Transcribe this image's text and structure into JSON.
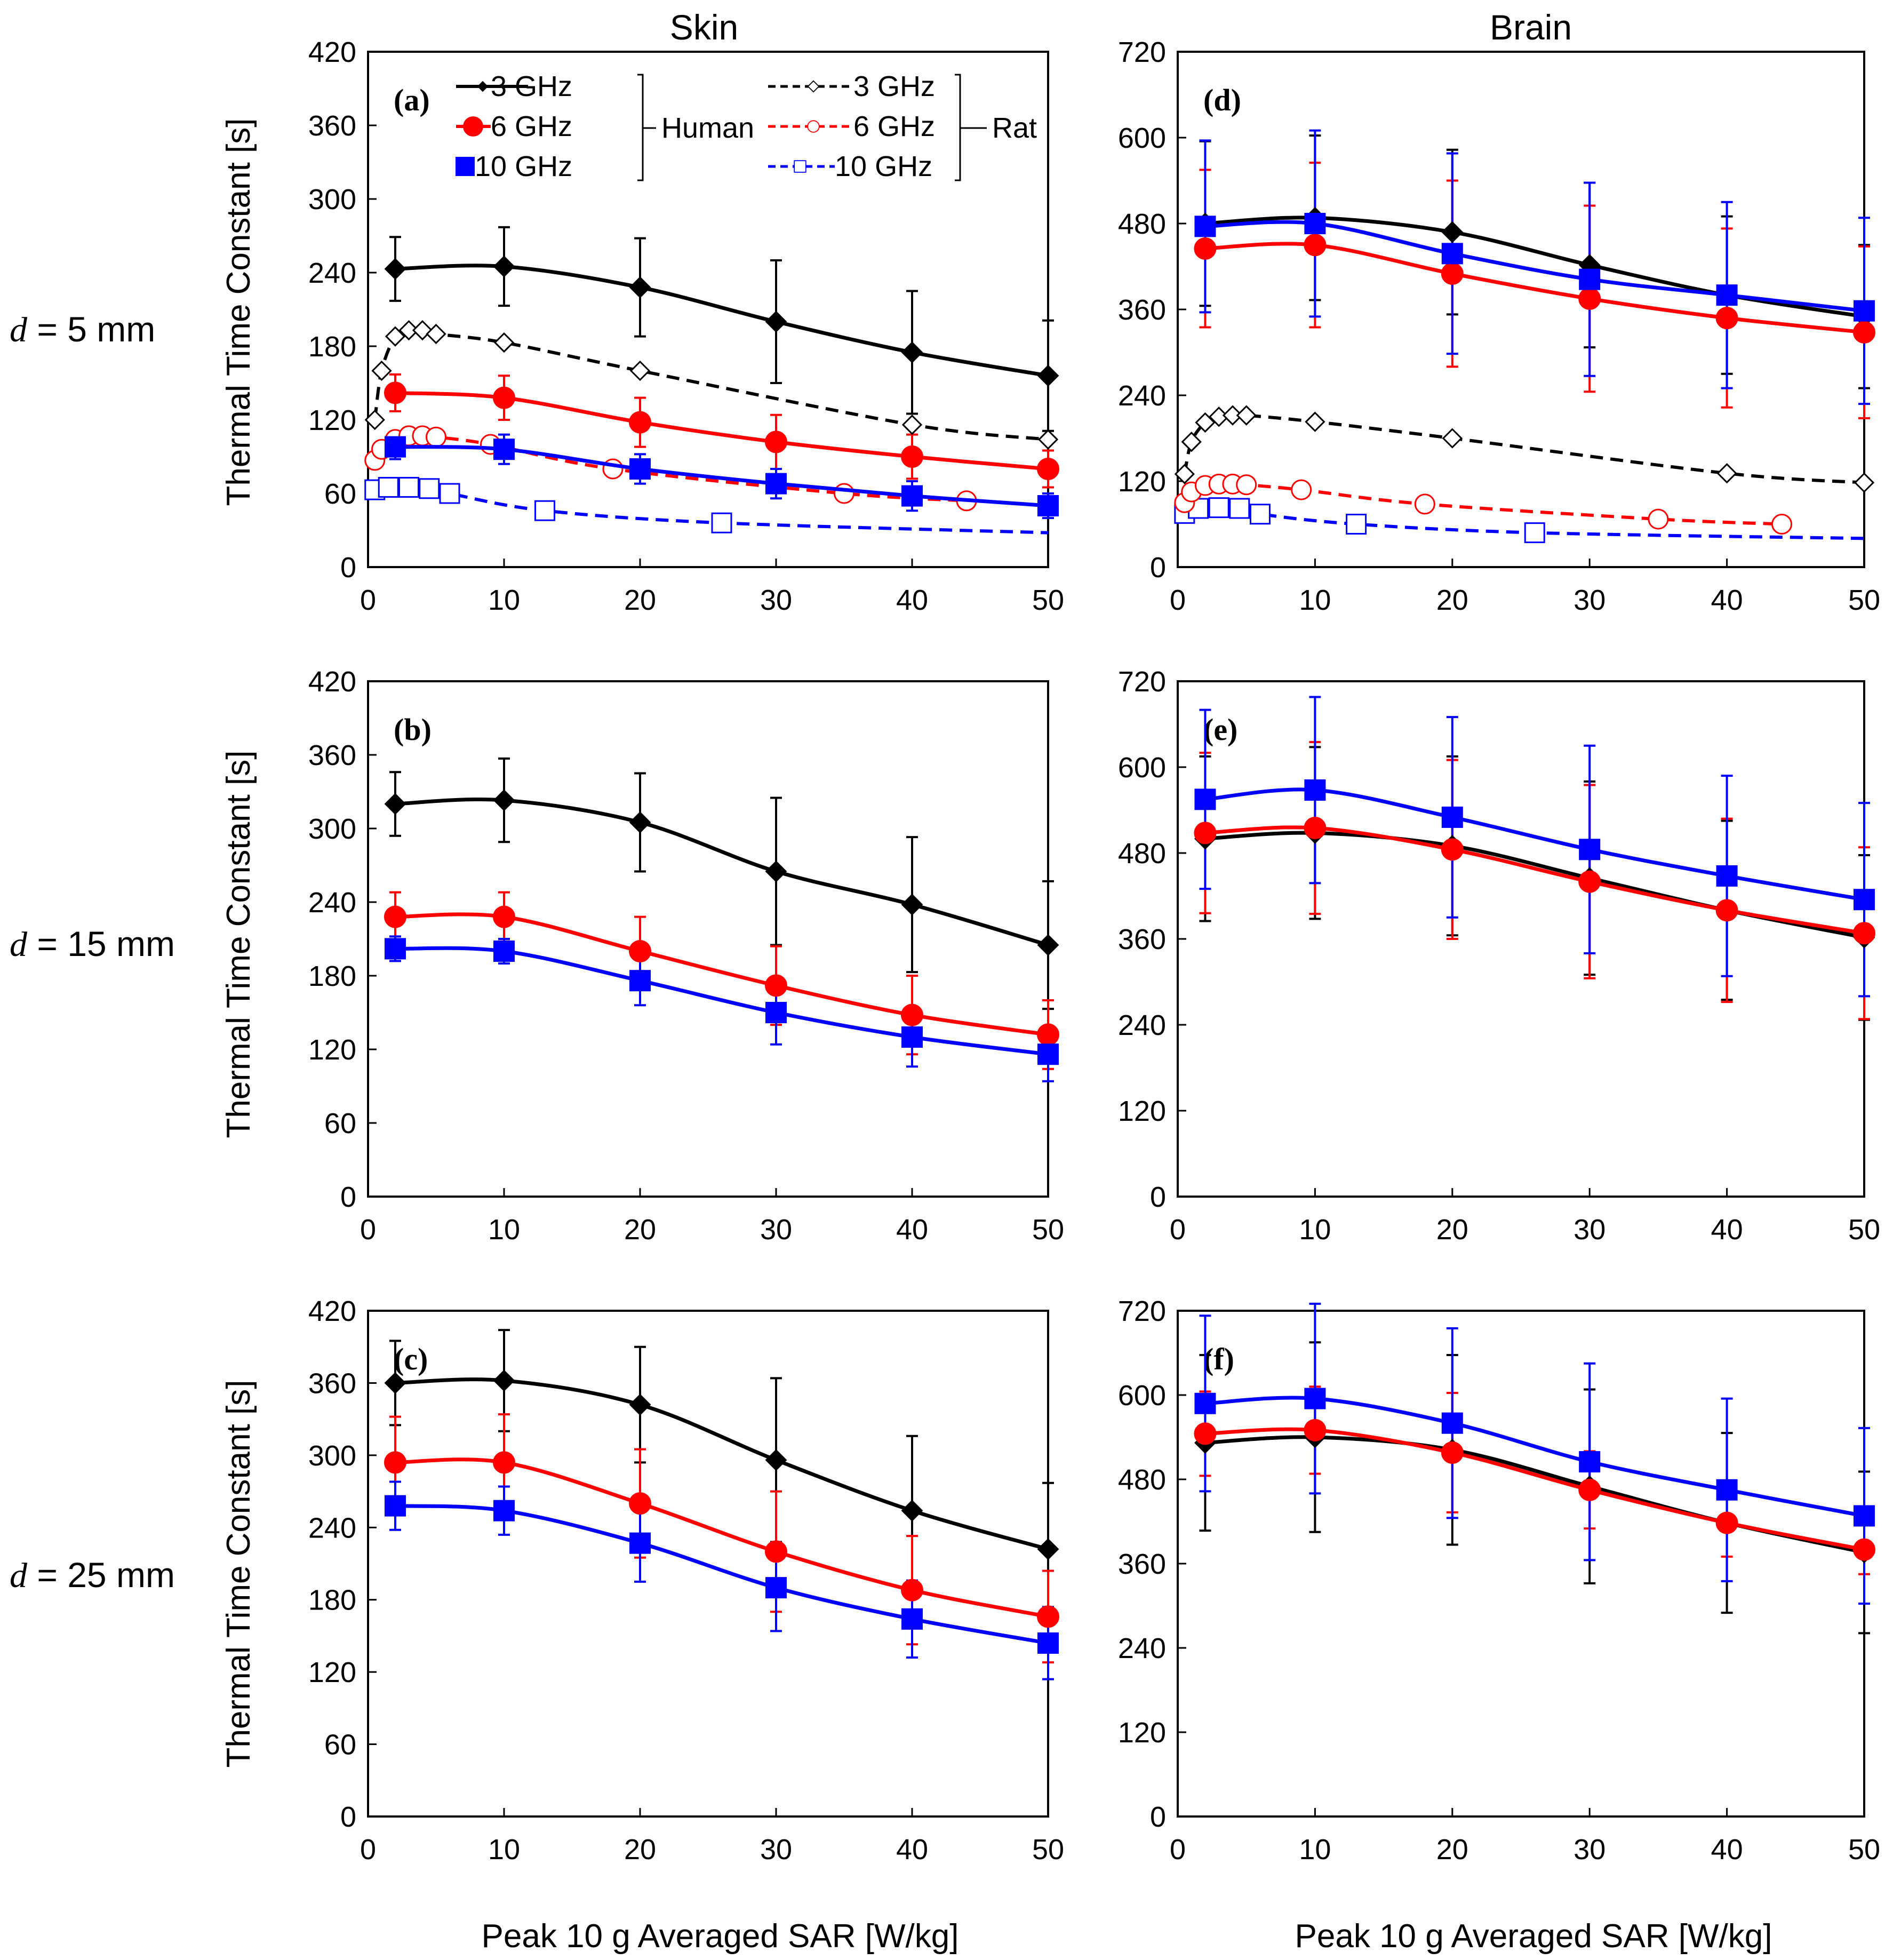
{
  "figure": {
    "column_titles": [
      "Skin",
      "Brain"
    ],
    "row_labels": [
      {
        "var": "d",
        "text": " = 5 mm"
      },
      {
        "var": "d",
        "text": " = 15 mm"
      },
      {
        "var": "d",
        "text": " = 25 mm"
      }
    ],
    "ylabel": "Thermal Time Constant [s]",
    "xlabel": "Peak 10 g Averaged SAR [W/kg]",
    "colors": {
      "3 GHz": "#000000",
      "6 GHz": "#ff0000",
      "10 GHz": "#0000ff"
    }
  },
  "legend": {
    "human_label": "Human",
    "rat_label": "Rat",
    "human": [
      "3 GHz",
      "6 GHz",
      "10 GHz"
    ],
    "rat": [
      "3 GHz",
      "6 GHz",
      "10 GHz"
    ]
  },
  "chart_data": [
    {
      "panel": "(a)",
      "type": "line",
      "column": "Skin",
      "row": "d = 5 mm",
      "xlim": [
        0,
        50
      ],
      "xticks": [
        0,
        10,
        20,
        30,
        40,
        50
      ],
      "ylim": [
        0,
        420
      ],
      "yticks": [
        0,
        60,
        120,
        180,
        240,
        300,
        360,
        420
      ],
      "series": [
        {
          "name": "Human 3 GHz",
          "species": "Human",
          "freq": "3 GHz",
          "marker": "diamond",
          "dash": false,
          "x": [
            2,
            10,
            20,
            30,
            40,
            50
          ],
          "y": [
            243,
            245,
            228,
            200,
            175,
            156
          ],
          "err": [
            26,
            32,
            40,
            50,
            50,
            45
          ]
        },
        {
          "name": "Human 6 GHz",
          "species": "Human",
          "freq": "6 GHz",
          "marker": "circle",
          "dash": false,
          "x": [
            2,
            10,
            20,
            30,
            40,
            50
          ],
          "y": [
            142,
            138,
            118,
            102,
            90,
            80
          ],
          "err": [
            15,
            18,
            20,
            22,
            18,
            15
          ]
        },
        {
          "name": "Human 10 GHz",
          "species": "Human",
          "freq": "10 GHz",
          "marker": "square",
          "dash": false,
          "x": [
            2,
            10,
            20,
            30,
            40,
            50
          ],
          "y": [
            98,
            96,
            80,
            68,
            58,
            50
          ],
          "err": [
            10,
            12,
            12,
            12,
            12,
            10
          ]
        },
        {
          "name": "Rat 3 GHz",
          "species": "Rat",
          "freq": "3 GHz",
          "marker": "diamond-open",
          "dash": true,
          "x": [
            0.5,
            1,
            2,
            3,
            4,
            5,
            10,
            20,
            40,
            50
          ],
          "y": [
            120,
            160,
            188,
            193,
            193,
            190,
            183,
            160,
            116,
            104
          ]
        },
        {
          "name": "Rat 6 GHz",
          "species": "Rat",
          "freq": "6 GHz",
          "marker": "circle-open",
          "dash": true,
          "x": [
            0.5,
            1,
            2,
            3,
            4,
            5,
            9,
            18,
            35,
            44
          ],
          "y": [
            87,
            96,
            104,
            107,
            107,
            106,
            100,
            80,
            60,
            54
          ]
        },
        {
          "name": "Rat 10 GHz",
          "species": "Rat",
          "freq": "10 GHz",
          "marker": "square-open",
          "dash": true,
          "x": [
            0.5,
            1.5,
            3,
            4.5,
            6,
            13,
            26,
            50
          ],
          "y": [
            63,
            65,
            65,
            64,
            60,
            46,
            36,
            28
          ],
          "markers_upto": 7
        }
      ]
    },
    {
      "panel": "(b)",
      "type": "line",
      "column": "Skin",
      "row": "d = 15 mm",
      "xlim": [
        0,
        50
      ],
      "xticks": [
        0,
        10,
        20,
        30,
        40,
        50
      ],
      "ylim": [
        0,
        420
      ],
      "yticks": [
        0,
        60,
        120,
        180,
        240,
        300,
        360,
        420
      ],
      "series": [
        {
          "name": "Human 3 GHz",
          "species": "Human",
          "freq": "3 GHz",
          "marker": "diamond",
          "dash": false,
          "x": [
            2,
            10,
            20,
            30,
            40,
            50
          ],
          "y": [
            320,
            323,
            305,
            265,
            238,
            205
          ],
          "err": [
            26,
            34,
            40,
            60,
            55,
            52
          ]
        },
        {
          "name": "Human 6 GHz",
          "species": "Human",
          "freq": "6 GHz",
          "marker": "circle",
          "dash": false,
          "x": [
            2,
            10,
            20,
            30,
            40,
            50
          ],
          "y": [
            228,
            228,
            200,
            172,
            148,
            132
          ],
          "err": [
            20,
            20,
            28,
            32,
            32,
            28
          ]
        },
        {
          "name": "Human 10 GHz",
          "species": "Human",
          "freq": "10 GHz",
          "marker": "square",
          "dash": false,
          "x": [
            2,
            10,
            20,
            30,
            40,
            50
          ],
          "y": [
            202,
            200,
            176,
            150,
            130,
            116
          ],
          "err": [
            10,
            10,
            20,
            26,
            24,
            22
          ]
        }
      ]
    },
    {
      "panel": "(c)",
      "type": "line",
      "column": "Skin",
      "row": "d = 25 mm",
      "xlim": [
        0,
        50
      ],
      "xticks": [
        0,
        10,
        20,
        30,
        40,
        50
      ],
      "ylim": [
        0,
        420
      ],
      "yticks": [
        0,
        60,
        120,
        180,
        240,
        300,
        360,
        420
      ],
      "series": [
        {
          "name": "Human 3 GHz",
          "species": "Human",
          "freq": "3 GHz",
          "marker": "diamond",
          "dash": false,
          "x": [
            2,
            10,
            20,
            30,
            40,
            50
          ],
          "y": [
            360,
            362,
            342,
            296,
            254,
            222
          ],
          "err": [
            35,
            42,
            48,
            68,
            62,
            55
          ]
        },
        {
          "name": "Human 6 GHz",
          "species": "Human",
          "freq": "6 GHz",
          "marker": "circle",
          "dash": false,
          "x": [
            2,
            10,
            20,
            30,
            40,
            50
          ],
          "y": [
            294,
            294,
            260,
            220,
            188,
            166
          ],
          "err": [
            38,
            40,
            45,
            50,
            45,
            38
          ]
        },
        {
          "name": "Human 10 GHz",
          "species": "Human",
          "freq": "10 GHz",
          "marker": "square",
          "dash": false,
          "x": [
            2,
            10,
            20,
            30,
            40,
            50
          ],
          "y": [
            258,
            254,
            227,
            190,
            164,
            144
          ],
          "err": [
            20,
            20,
            32,
            36,
            32,
            30
          ]
        }
      ]
    },
    {
      "panel": "(d)",
      "type": "line",
      "column": "Brain",
      "row": "d = 5 mm",
      "xlim": [
        0,
        50
      ],
      "xticks": [
        0,
        10,
        20,
        30,
        40,
        50
      ],
      "ylim": [
        0,
        720
      ],
      "yticks": [
        0,
        120,
        240,
        360,
        480,
        600,
        720
      ],
      "series": [
        {
          "name": "Human 3 GHz",
          "species": "Human",
          "freq": "3 GHz",
          "marker": "diamond",
          "dash": false,
          "x": [
            2,
            10,
            20,
            30,
            40,
            50
          ],
          "y": [
            480,
            488,
            468,
            422,
            380,
            350
          ],
          "err": [
            115,
            115,
            115,
            115,
            110,
            100
          ]
        },
        {
          "name": "Human 6 GHz",
          "species": "Human",
          "freq": "6 GHz",
          "marker": "circle",
          "dash": false,
          "x": [
            2,
            10,
            20,
            30,
            40,
            50
          ],
          "y": [
            445,
            450,
            410,
            375,
            348,
            328
          ],
          "err": [
            110,
            115,
            130,
            130,
            125,
            120
          ]
        },
        {
          "name": "Human 10 GHz",
          "species": "Human",
          "freq": "10 GHz",
          "marker": "square",
          "dash": false,
          "x": [
            2,
            10,
            20,
            30,
            40,
            50
          ],
          "y": [
            476,
            480,
            438,
            402,
            380,
            358
          ],
          "err": [
            120,
            130,
            140,
            135,
            130,
            130
          ]
        },
        {
          "name": "Rat 3 GHz",
          "species": "Rat",
          "freq": "3 GHz",
          "marker": "diamond-open",
          "dash": true,
          "x": [
            0.5,
            1,
            2,
            3,
            4,
            5,
            10,
            20,
            40,
            50
          ],
          "y": [
            130,
            175,
            202,
            210,
            212,
            212,
            203,
            180,
            131,
            118
          ]
        },
        {
          "name": "Rat 6 GHz",
          "species": "Rat",
          "freq": "6 GHz",
          "marker": "circle-open",
          "dash": true,
          "x": [
            0.5,
            1,
            2,
            3,
            4,
            5,
            9,
            18,
            35,
            44
          ],
          "y": [
            90,
            105,
            114,
            116,
            116,
            115,
            108,
            88,
            67,
            60
          ]
        },
        {
          "name": "Rat 10 GHz",
          "species": "Rat",
          "freq": "10 GHz",
          "marker": "square-open",
          "dash": true,
          "x": [
            0.5,
            1.5,
            3,
            4.5,
            6,
            13,
            26,
            50
          ],
          "y": [
            75,
            82,
            83,
            82,
            74,
            60,
            48,
            40
          ],
          "markers_upto": 7
        }
      ]
    },
    {
      "panel": "(e)",
      "type": "line",
      "column": "Brain",
      "row": "d = 15 mm",
      "xlim": [
        0,
        50
      ],
      "xticks": [
        0,
        10,
        20,
        30,
        40,
        50
      ],
      "ylim": [
        0,
        720
      ],
      "yticks": [
        0,
        120,
        240,
        360,
        480,
        600,
        720
      ],
      "series": [
        {
          "name": "Human 3 GHz",
          "species": "Human",
          "freq": "3 GHz",
          "marker": "diamond",
          "dash": false,
          "x": [
            2,
            10,
            20,
            30,
            40,
            50
          ],
          "y": [
            500,
            508,
            490,
            445,
            400,
            362
          ],
          "err": [
            115,
            120,
            125,
            135,
            125,
            115
          ]
        },
        {
          "name": "Human 6 GHz",
          "species": "Human",
          "freq": "6 GHz",
          "marker": "circle",
          "dash": false,
          "x": [
            2,
            10,
            20,
            30,
            40,
            50
          ],
          "y": [
            508,
            515,
            485,
            440,
            400,
            368
          ],
          "err": [
            112,
            120,
            125,
            135,
            128,
            120
          ]
        },
        {
          "name": "Human 10 GHz",
          "species": "Human",
          "freq": "10 GHz",
          "marker": "square",
          "dash": false,
          "x": [
            2,
            10,
            20,
            30,
            40,
            50
          ],
          "y": [
            555,
            568,
            530,
            485,
            448,
            415
          ],
          "err": [
            125,
            130,
            140,
            145,
            140,
            135
          ]
        }
      ]
    },
    {
      "panel": "(f)",
      "type": "line",
      "column": "Brain",
      "row": "d = 25 mm",
      "xlim": [
        0,
        50
      ],
      "xticks": [
        0,
        10,
        20,
        30,
        40,
        50
      ],
      "ylim": [
        0,
        720
      ],
      "yticks": [
        0,
        120,
        240,
        360,
        480,
        600,
        720
      ],
      "series": [
        {
          "name": "Human 3 GHz",
          "species": "Human",
          "freq": "3 GHz",
          "marker": "diamond",
          "dash": false,
          "x": [
            2,
            10,
            20,
            30,
            40,
            50
          ],
          "y": [
            532,
            540,
            522,
            470,
            418,
            376
          ],
          "err": [
            125,
            135,
            135,
            138,
            128,
            115
          ]
        },
        {
          "name": "Human 6 GHz",
          "species": "Human",
          "freq": "6 GHz",
          "marker": "circle",
          "dash": false,
          "x": [
            2,
            10,
            20,
            30,
            40,
            50
          ],
          "y": [
            545,
            550,
            518,
            465,
            418,
            380
          ],
          "err": [
            60,
            62,
            85,
            55,
            48,
            35
          ]
        },
        {
          "name": "Human 10 GHz",
          "species": "Human",
          "freq": "10 GHz",
          "marker": "square",
          "dash": false,
          "x": [
            2,
            10,
            20,
            30,
            40,
            50
          ],
          "y": [
            588,
            595,
            560,
            505,
            465,
            428
          ],
          "err": [
            125,
            135,
            135,
            140,
            130,
            125
          ]
        }
      ]
    }
  ]
}
